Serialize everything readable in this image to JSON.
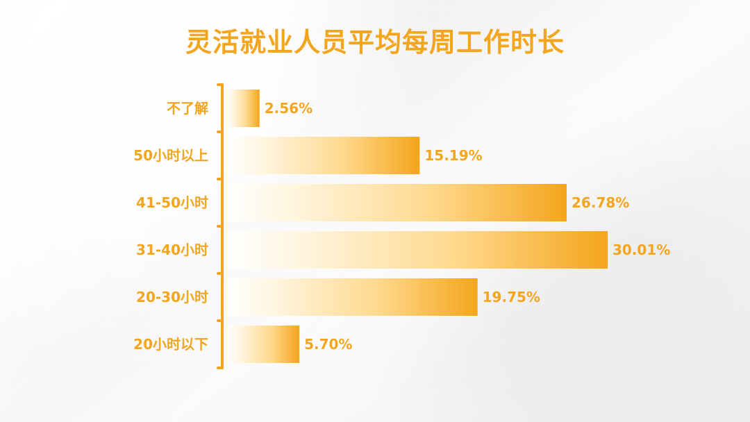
{
  "colors": {
    "accent": "#f2a51f",
    "bar_start": "#ffffff",
    "bar_end": "#f4a51c"
  },
  "chart_data": {
    "type": "bar",
    "title": "灵活就业人员平均每周工作时长",
    "categories": [
      "不了解",
      "50小时以上",
      "41-50小时",
      "31-40小时",
      "20-30小时",
      "20小时以下"
    ],
    "values": [
      2.56,
      15.19,
      26.78,
      30.01,
      19.75,
      5.7
    ],
    "value_labels": [
      "2.56%",
      "15.19%",
      "26.78%",
      "30.01%",
      "19.75%",
      "5.70%"
    ],
    "xlabel": "",
    "ylabel": "",
    "xlim": [
      0,
      30.01
    ],
    "grid": false,
    "legend": "none"
  }
}
